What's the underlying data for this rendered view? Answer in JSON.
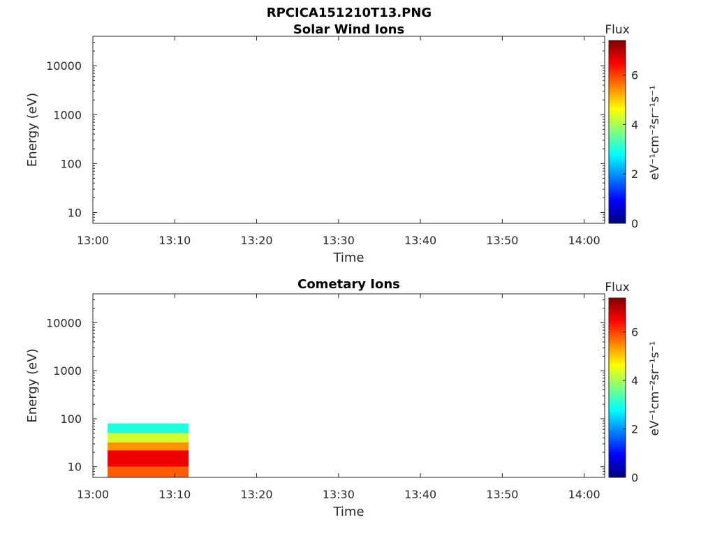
{
  "figure_title": "RPCICA151210T13.PNG",
  "chart_data": [
    {
      "type": "heatmap",
      "title": "Solar Wind Ions",
      "xlabel": "Time",
      "ylabel": "Energy (eV)",
      "y_scale": "log",
      "x_ticks": [
        "13:00",
        "13:10",
        "13:20",
        "13:30",
        "13:40",
        "13:50",
        "14:00"
      ],
      "xlim": [
        "13:00",
        "14:02.5"
      ],
      "y_ticks": [
        10,
        100,
        1000,
        10000
      ],
      "y_tick_labels": [
        "10",
        "100",
        "1000",
        "10000"
      ],
      "ylim": [
        6,
        40000
      ],
      "colorbar": {
        "title": "Flux",
        "label": "eV⁻¹cm⁻²sr⁻¹s⁻¹",
        "range": [
          0,
          7.4
        ],
        "ticks": [
          0,
          2,
          4,
          6
        ],
        "tick_labels": [
          "0",
          "2",
          "4",
          "6"
        ],
        "colormap": "jet"
      },
      "data_regions": []
    },
    {
      "type": "heatmap",
      "title": "Cometary Ions",
      "xlabel": "Time",
      "ylabel": "Energy (eV)",
      "y_scale": "log",
      "x_ticks": [
        "13:00",
        "13:10",
        "13:20",
        "13:30",
        "13:40",
        "13:50",
        "14:00"
      ],
      "xlim": [
        "13:00",
        "14:02.5"
      ],
      "y_ticks": [
        10,
        100,
        1000,
        10000
      ],
      "y_tick_labels": [
        "10",
        "100",
        "1000",
        "10000"
      ],
      "ylim": [
        6,
        40000
      ],
      "colorbar": {
        "title": "Flux",
        "label": "eV⁻¹cm⁻²sr⁻¹s⁻¹",
        "range": [
          0,
          7.4
        ],
        "ticks": [
          0,
          2,
          4,
          6
        ],
        "tick_labels": [
          "0",
          "2",
          "4",
          "6"
        ],
        "colormap": "jet"
      },
      "data_regions": [
        {
          "t_start": "13:01.8",
          "t_end": "13:11.7",
          "e_min": 6,
          "e_max": 10,
          "flux_level": 5.8
        },
        {
          "t_start": "13:01.8",
          "t_end": "13:11.7",
          "e_min": 10,
          "e_max": 22,
          "flux_level": 6.6
        },
        {
          "t_start": "13:01.8",
          "t_end": "13:11.7",
          "e_min": 22,
          "e_max": 32,
          "flux_level": 5.4
        },
        {
          "t_start": "13:01.8",
          "t_end": "13:11.7",
          "e_min": 32,
          "e_max": 50,
          "flux_level": 4.3
        },
        {
          "t_start": "13:01.8",
          "t_end": "13:11.7",
          "e_min": 50,
          "e_max": 80,
          "flux_level": 3.0
        }
      ]
    }
  ]
}
